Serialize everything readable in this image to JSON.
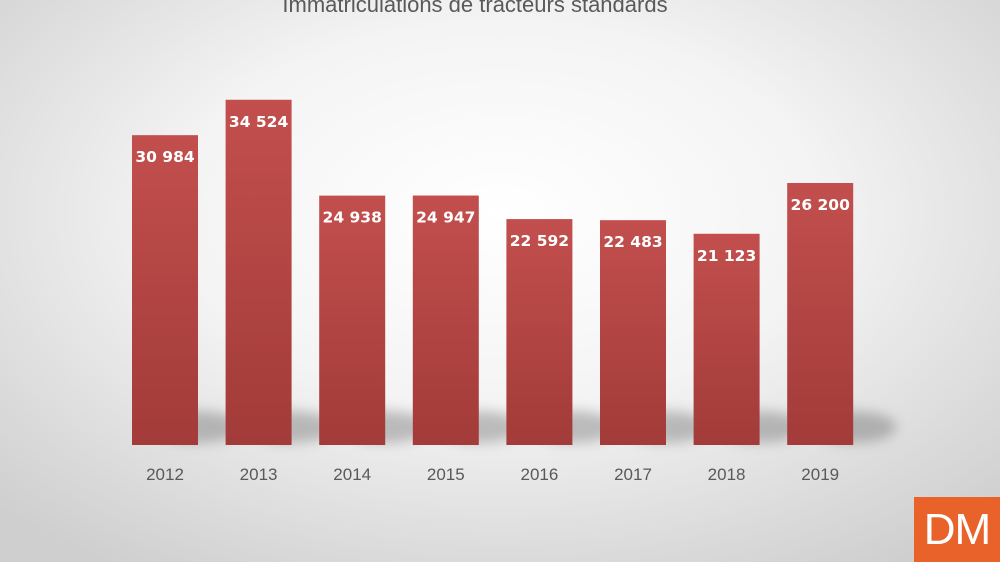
{
  "chart_data": {
    "type": "bar",
    "title": "Immatriculations de tracteurs standards",
    "categories": [
      "2012",
      "2013",
      "2014",
      "2015",
      "2016",
      "2017",
      "2018",
      "2019"
    ],
    "values": [
      30984,
      34524,
      24938,
      24947,
      22592,
      22483,
      21123,
      26200
    ],
    "value_labels": [
      "30 984",
      "34 524",
      "24 938",
      "24 947",
      "22 592",
      "22 483",
      "21 123",
      "26 200"
    ],
    "xlabel": "",
    "ylabel": "",
    "ylim": [
      0,
      38000
    ],
    "grid": false,
    "legend": "none",
    "bar_color": "#c0504d"
  },
  "logo": {
    "text": "DM",
    "color": "#e8622a"
  }
}
